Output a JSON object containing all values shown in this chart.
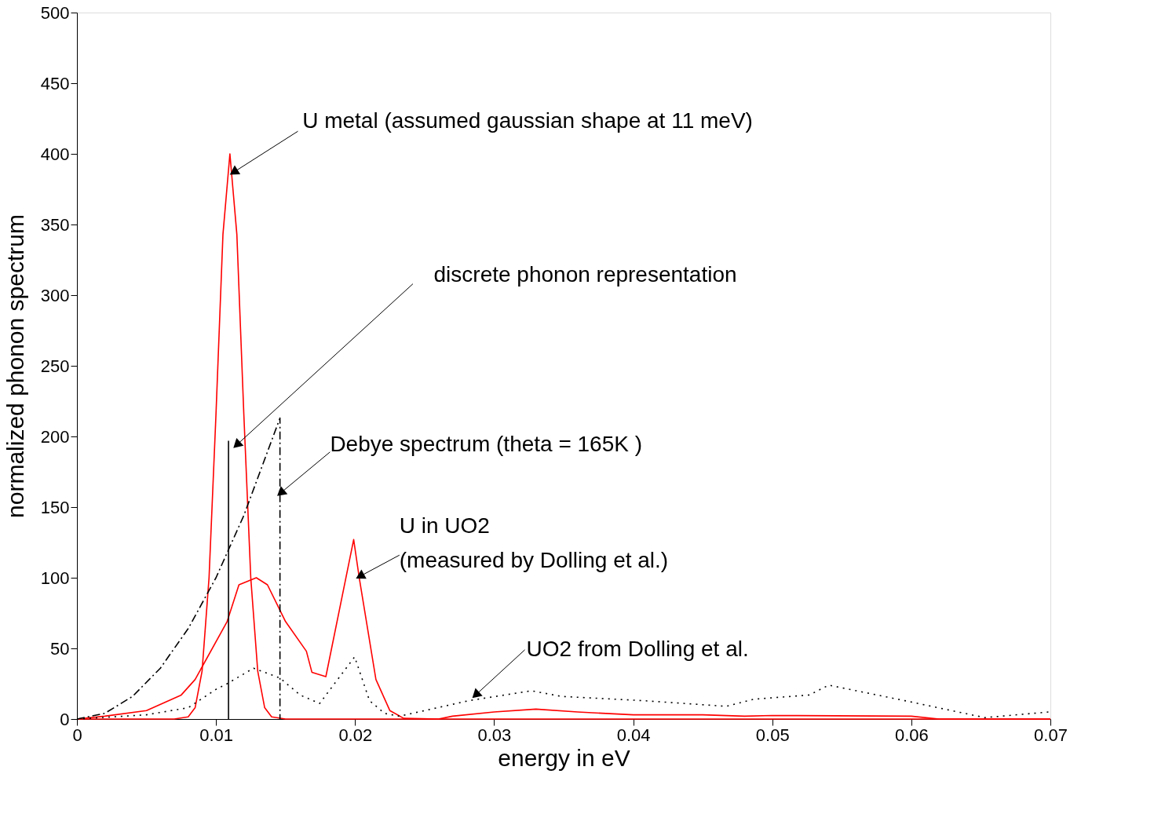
{
  "chart_data": {
    "type": "line",
    "xlabel": "energy in eV",
    "ylabel": "normalized phonon spectrum",
    "xlim": [
      0,
      0.07
    ],
    "ylim": [
      0,
      500
    ],
    "xticks": [
      0,
      0.01,
      0.02,
      0.03,
      0.04,
      0.05,
      0.06,
      0.07
    ],
    "yticks": [
      0,
      50,
      100,
      150,
      200,
      250,
      300,
      350,
      400,
      450,
      500
    ],
    "grid": false,
    "marker": "none",
    "series": [
      {
        "color": "#ff0000",
        "line_style": "solid",
        "x": [
          0,
          0.007,
          0.008,
          0.0085,
          0.009,
          0.0095,
          0.01,
          0.0105,
          0.011,
          0.0115,
          0.012,
          0.0125,
          0.013,
          0.0135,
          0.014,
          0.015,
          0.07
        ],
        "values": [
          0,
          0,
          1.5,
          8,
          34,
          100,
          216,
          343,
          400,
          343,
          216,
          100,
          34,
          8,
          1.5,
          0,
          0
        ]
      },
      {
        "color": "#ff0000",
        "line_style": "solid",
        "x": [
          0,
          0.002,
          0.005,
          0.0075,
          0.0085,
          0.0108,
          0.01165,
          0.0129,
          0.0137,
          0.015,
          0.0165,
          0.0169,
          0.0179,
          0.0199,
          0.0203,
          0.0215,
          0.0225,
          0.0235,
          0.026,
          0.027,
          0.03,
          0.033,
          0.036,
          0.04,
          0.045,
          0.048,
          0.05,
          0.06,
          0.062,
          0.07
        ],
        "values": [
          0,
          2,
          6,
          17,
          28,
          69,
          95,
          100,
          95,
          69,
          48,
          33,
          30,
          127,
          100,
          28,
          6,
          0.5,
          0,
          2,
          5,
          7,
          5,
          3,
          3,
          2,
          2.5,
          2,
          0,
          0
        ]
      },
      {
        "color": "#000000",
        "line_style": "solid",
        "x": [
          0.0109,
          0.0109
        ],
        "values": [
          0,
          197
        ]
      },
      {
        "color": "#000000",
        "line_style": "dashed",
        "x": [
          0,
          0.002,
          0.004,
          0.006,
          0.008,
          0.01,
          0.012,
          0.0146,
          0.0146
        ],
        "values": [
          0,
          4,
          16,
          36,
          64,
          100,
          144,
          213,
          0
        ]
      },
      {
        "color": "#000000",
        "line_style": "dotted",
        "x": [
          0,
          0.005,
          0.008,
          0.01,
          0.0108,
          0.0127,
          0.0146,
          0.01605,
          0.01745,
          0.01997,
          0.02104,
          0.02212,
          0.02319,
          0.02818,
          0.03269,
          0.03484,
          0.04074,
          0.0467,
          0.04864,
          0.05266,
          0.05406,
          0.05953,
          0.06528,
          0.06989
        ],
        "values": [
          0,
          3,
          8,
          21,
          25,
          36,
          29,
          17,
          11,
          44,
          13,
          4,
          2,
          13,
          20,
          16,
          13,
          9,
          14,
          17,
          24,
          13,
          1,
          5
        ]
      }
    ],
    "annotations": [
      {
        "text": "U metal (assumed gaussian shape at 11 meV)",
        "x": 0.01127,
        "y": 387
      },
      "discrete phonon representation",
      {
        "text": "Debye spectrum (theta = 165K )",
        "x": 0.01465,
        "y": 160
      },
      {
        "text": "U in UO2\n(measured by Dolling et al.)",
        "x": 0.02035,
        "y": 101
      },
      {
        "text": "UO2 from Dolling et al.",
        "x": 0.02867,
        "y": 17
      }
    ]
  }
}
